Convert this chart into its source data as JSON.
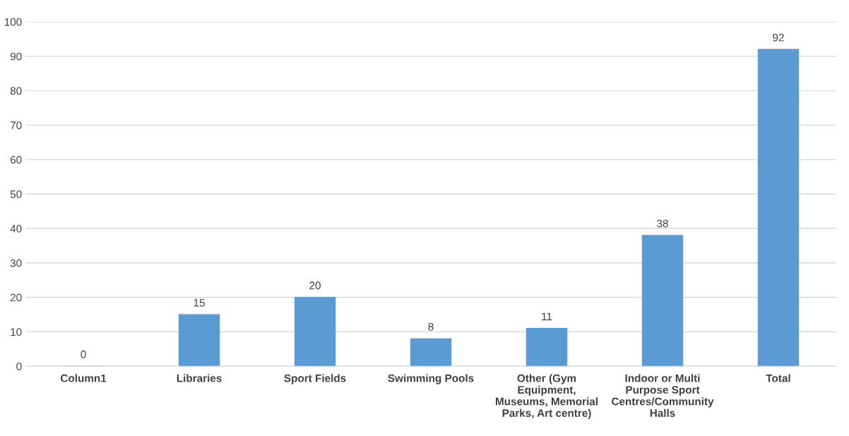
{
  "chart_data": {
    "type": "bar",
    "categories": [
      "Column1",
      "Libraries",
      "Sport Fields",
      "Swimming Pools",
      "Other (Gym\nEquipment,\nMuseums, Memorial\nParks, Art centre)",
      "Indoor or Multi\nPurpose Sport\nCentres/Community\nHalls",
      "Total"
    ],
    "values": [
      0,
      15,
      20,
      8,
      11,
      38,
      92
    ],
    "color": "#5b9bd5",
    "ylim": [
      0,
      100
    ],
    "yticks": [
      0,
      10,
      20,
      30,
      40,
      50,
      60,
      70,
      80,
      90,
      100
    ],
    "grid": "y",
    "data_labels": true
  }
}
